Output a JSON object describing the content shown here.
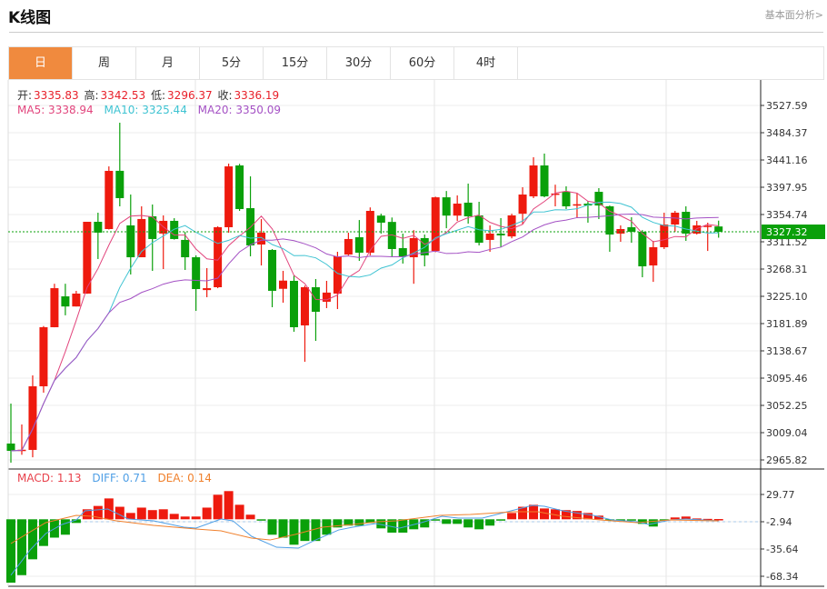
{
  "header": {
    "title": "K线图",
    "fundamental_link": "基本面分析>"
  },
  "tabs": [
    {
      "label": "日",
      "active": true
    },
    {
      "label": "周"
    },
    {
      "label": "月"
    },
    {
      "label": "5分"
    },
    {
      "label": "15分"
    },
    {
      "label": "30分"
    },
    {
      "label": "60分"
    },
    {
      "label": "4时"
    }
  ],
  "ohlc_legend": {
    "open_label": "开:",
    "open": "3335.83",
    "high_label": "高:",
    "high": "3342.53",
    "low_label": "低:",
    "low": "3296.37",
    "close_label": "收:",
    "close": "3336.19"
  },
  "ma_legend": {
    "ma5": "MA5: 3338.94",
    "ma10": "MA10: 3325.44",
    "ma20": "MA20: 3350.09"
  },
  "macd_legend": {
    "macd": "MACD: 1.13",
    "diff": "DIFF: 0.71",
    "dea": "DEA: 0.14"
  },
  "colors": {
    "up": "#ee1a0e",
    "down": "#0aa00a",
    "ma5": "#e2457d",
    "ma10": "#3ec3d2",
    "ma20": "#a451c4",
    "diff": "#4f9fe6",
    "dea": "#f0802c",
    "accent": "#f08a3e"
  },
  "chart_data": [
    {
      "type": "candlestick",
      "price_axis_ticks": [
        "3527.59",
        "3484.37",
        "3441.16",
        "3397.95",
        "3354.74",
        "3311.52",
        "3268.31",
        "3225.10",
        "3181.89",
        "3138.67",
        "3095.46",
        "3052.25",
        "3009.04",
        "2965.82"
      ],
      "ylim": [
        2965.82,
        3527.59
      ],
      "current_price": "3327.32",
      "ma_periods": [
        5,
        10,
        20
      ],
      "candles_ohlc": [
        [
          2991.8,
          3055.1,
          2961.5,
          2980.2
        ],
        [
          2980,
          3022,
          2974,
          2982
        ],
        [
          2981.7,
          3099.8,
          2970,
          3082.5
        ],
        [
          3082.5,
          3178,
          3072.4,
          3176.1
        ],
        [
          3176.1,
          3245,
          3176,
          3238
        ],
        [
          3225,
          3245,
          3195,
          3209
        ],
        [
          3209,
          3233.7,
          3209,
          3229.4
        ],
        [
          3229.4,
          3343.2,
          3229,
          3343.2
        ],
        [
          3343.2,
          3357.6,
          3284.2,
          3326
        ],
        [
          3331.7,
          3431,
          3331,
          3423.9
        ],
        [
          3424,
          3500.2,
          3367.7,
          3380.7
        ],
        [
          3337.5,
          3386.4,
          3259.7,
          3287
        ],
        [
          3287,
          3367.7,
          3287,
          3347.6
        ],
        [
          3351.9,
          3370.6,
          3265.4,
          3315.9
        ],
        [
          3324.5,
          3353.3,
          3268.3,
          3344.7
        ],
        [
          3344.7,
          3348.9,
          3315,
          3315.9
        ],
        [
          3314.5,
          3327,
          3266.9,
          3287
        ],
        [
          3287,
          3290,
          3202,
          3236.6
        ],
        [
          3235,
          3269.8,
          3223.7,
          3238
        ],
        [
          3239.5,
          3336,
          3238,
          3334.6
        ],
        [
          3334.6,
          3435.4,
          3325.9,
          3431
        ],
        [
          3432.5,
          3435,
          3360.5,
          3363.4
        ],
        [
          3364.8,
          3415.2,
          3288.5,
          3305.8
        ],
        [
          3307.2,
          3347.5,
          3274,
          3326
        ],
        [
          3298.6,
          3300,
          3207.8,
          3233.8
        ],
        [
          3237,
          3265.4,
          3215,
          3250
        ],
        [
          3249.6,
          3258,
          3168.9,
          3176.1
        ],
        [
          3179,
          3242,
          3121.4,
          3239.5
        ],
        [
          3239.5,
          3252.5,
          3154.5,
          3200.6
        ],
        [
          3216.5,
          3249.6,
          3206.4,
          3231
        ],
        [
          3229.4,
          3295.7,
          3204.9,
          3288.5
        ],
        [
          3291.3,
          3325.9,
          3290,
          3315.9
        ],
        [
          3318.7,
          3346,
          3281.3,
          3294.2
        ],
        [
          3294.2,
          3366,
          3290,
          3360.5
        ],
        [
          3353,
          3356,
          3324.5,
          3341.8
        ],
        [
          3343,
          3350,
          3287,
          3300
        ],
        [
          3301.5,
          3324.5,
          3277,
          3288.5
        ],
        [
          3287,
          3330,
          3245,
          3317.3
        ],
        [
          3317.3,
          3323,
          3272.6,
          3290
        ],
        [
          3297,
          3383,
          3295,
          3382
        ],
        [
          3382,
          3392,
          3333,
          3353
        ],
        [
          3353,
          3385,
          3344.6,
          3372
        ],
        [
          3373.5,
          3403.7,
          3340.3,
          3351.9
        ],
        [
          3353.3,
          3374.9,
          3305.8,
          3310
        ],
        [
          3314.5,
          3337.5,
          3295.7,
          3324.5
        ],
        [
          3324.5,
          3349,
          3303,
          3321.6
        ],
        [
          3320,
          3356,
          3317,
          3353.3
        ],
        [
          3356,
          3398,
          3338.9,
          3386.4
        ],
        [
          3383.5,
          3445.5,
          3380.7,
          3432.5
        ],
        [
          3432.5,
          3451.3,
          3382,
          3383.5
        ],
        [
          3386,
          3402,
          3367.7,
          3388
        ],
        [
          3390.7,
          3399.4,
          3363.4,
          3367.7
        ],
        [
          3369.5,
          3389,
          3349,
          3371
        ],
        [
          3372,
          3376,
          3341.8,
          3369
        ],
        [
          3390.7,
          3396.5,
          3347.5,
          3369
        ],
        [
          3367.7,
          3369,
          3295.7,
          3323
        ],
        [
          3324.5,
          3337.5,
          3311.5,
          3331.7
        ],
        [
          3334.6,
          3350.4,
          3310,
          3327.4
        ],
        [
          3327.4,
          3330,
          3255.3,
          3272.6
        ],
        [
          3274,
          3313,
          3248,
          3302.9
        ],
        [
          3302.9,
          3357.6,
          3300,
          3338.9
        ],
        [
          3338.9,
          3360.5,
          3327.4,
          3357.6
        ],
        [
          3359,
          3367.7,
          3313,
          3324.5
        ],
        [
          3324.5,
          3344.7,
          3323,
          3337.5
        ],
        [
          3336,
          3341.8,
          3297,
          3337
        ],
        [
          3335.8,
          3345,
          3318,
          3327.3
        ]
      ]
    },
    {
      "type": "bar+line",
      "axis_ticks": [
        "29.77",
        "-2.94",
        "-35.64",
        "-68.34"
      ],
      "ylim": [
        -68.34,
        29.77
      ],
      "macd_bars": [
        -76,
        -67,
        -48,
        -32,
        -22,
        -18.5,
        -4.4,
        12,
        16,
        25,
        15,
        7.6,
        14,
        11,
        12,
        6.5,
        3.3,
        3.3,
        14,
        29.4,
        33.8,
        17.4,
        5.5,
        -0.5,
        -18.5,
        -22,
        -30.5,
        -26,
        -26,
        -18.5,
        -9.8,
        -7.6,
        -7.6,
        -4.4,
        -10.9,
        -16,
        -16,
        -12,
        -9.8,
        -0.5,
        -5.5,
        -5.5,
        -9.8,
        -12,
        -7.6,
        -1.5,
        7.6,
        15,
        17.4,
        13,
        12,
        11,
        10,
        7.6,
        4.4,
        -1,
        -1,
        -1.5,
        -5.5,
        -8.7,
        -1,
        2.2,
        3.3,
        1,
        0.5,
        0.3
      ],
      "diff_points": [
        [
          0,
          -67
        ],
        [
          1.8,
          -36.3
        ],
        [
          3.2,
          -17.1
        ],
        [
          4.7,
          -6.2
        ],
        [
          6,
          -0.8
        ],
        [
          6.8,
          10.1
        ],
        [
          8.9,
          12.3
        ],
        [
          10.8,
          0.3
        ],
        [
          13.1,
          -1.9
        ],
        [
          15.9,
          -9.5
        ],
        [
          17,
          -10.6
        ],
        [
          19.3,
          0.3
        ],
        [
          20.4,
          -1.9
        ],
        [
          22.1,
          -20.4
        ],
        [
          24.4,
          -33.5
        ],
        [
          26.4,
          -34.6
        ],
        [
          27.8,
          -25.9
        ],
        [
          30.1,
          -12.8
        ],
        [
          31.4,
          -9.5
        ],
        [
          33.5,
          -5.1
        ],
        [
          35.7,
          -10.6
        ],
        [
          37.7,
          -4
        ],
        [
          39.6,
          3.6
        ],
        [
          41.1,
          1.4
        ],
        [
          43.3,
          1.4
        ],
        [
          45.6,
          9.1
        ],
        [
          47.9,
          16.7
        ],
        [
          49,
          15.6
        ],
        [
          50.7,
          10.1
        ],
        [
          53.5,
          4.7
        ],
        [
          55.2,
          -0.8
        ],
        [
          57.5,
          -3
        ],
        [
          58.6,
          -6.2
        ],
        [
          60.6,
          -0.8
        ],
        [
          62,
          0.3
        ],
        [
          65,
          -1.9
        ]
      ],
      "dea_points": [
        [
          0,
          -29.1
        ],
        [
          1.8,
          -14.9
        ],
        [
          3.2,
          -4
        ],
        [
          6,
          4.7
        ],
        [
          7.5,
          3.6
        ],
        [
          9.7,
          -1.9
        ],
        [
          13.1,
          -7.3
        ],
        [
          17,
          -11.7
        ],
        [
          19.3,
          -13.9
        ],
        [
          22.1,
          -22.6
        ],
        [
          23.8,
          -24.8
        ],
        [
          26.1,
          -18.2
        ],
        [
          28.6,
          -9.5
        ],
        [
          31.4,
          -6.2
        ],
        [
          33.7,
          -3
        ],
        [
          35.4,
          -1.9
        ],
        [
          39.4,
          4.7
        ],
        [
          42.2,
          5.8
        ],
        [
          46.2,
          9.1
        ],
        [
          48.4,
          9.1
        ],
        [
          50.7,
          3.6
        ],
        [
          54.1,
          -0.8
        ],
        [
          57.5,
          -4
        ],
        [
          60.6,
          -0.8
        ],
        [
          65,
          -1.9
        ]
      ]
    }
  ]
}
